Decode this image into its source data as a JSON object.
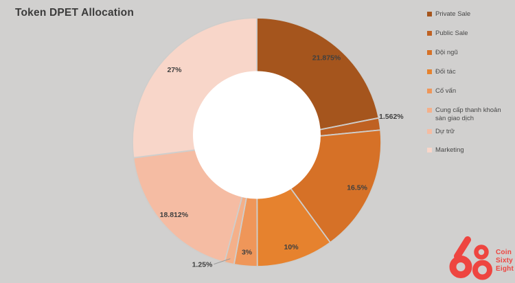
{
  "title": "Token DPET Allocation",
  "colors": {
    "background": "#d1d0cf",
    "title": "#3b3b3b",
    "label": "#404040",
    "legend_text": "#484848",
    "slice_border": "#cfcecc",
    "leader_line": "#9a9a9a",
    "hole": "#ffffff",
    "logo_red": "#ee4540"
  },
  "chart_data": {
    "type": "pie",
    "donut": true,
    "title": "Token DPET Allocation",
    "start_angle_deg": 0,
    "direction": "clockwise",
    "legend_position": "right",
    "slices": [
      {
        "label": "Private Sale",
        "value": 21.875,
        "display": "21.875%",
        "color": "#a5551d",
        "label_placement": "inside"
      },
      {
        "label": "Public Sale",
        "value": 1.562,
        "display": "1.562%",
        "color": "#bf6122",
        "label_placement": "outside"
      },
      {
        "label": "Đội ngũ",
        "value": 16.5,
        "display": "16.5%",
        "color": "#d67127",
        "label_placement": "inside"
      },
      {
        "label": "Đối tác",
        "value": 10,
        "display": "10%",
        "color": "#e6822e",
        "label_placement": "inside"
      },
      {
        "label": "Cố vấn",
        "value": 3,
        "display": "3%",
        "color": "#ef9659",
        "label_placement": "inside"
      },
      {
        "label": "Cung cấp thanh khoản sàn giao dịch",
        "value": 1.25,
        "display": "1.25%",
        "color": "#f4b08a",
        "label_placement": "outside"
      },
      {
        "label": "Dự trữ",
        "value": 18.812,
        "display": "18.812%",
        "color": "#f5bca3",
        "label_placement": "inside"
      },
      {
        "label": "Marketing",
        "value": 27,
        "display": "27%",
        "color": "#f8d6c9",
        "label_placement": "inside"
      }
    ]
  },
  "logo": {
    "numeral": "68",
    "lines": [
      "Coin",
      "Sixty",
      "Eight"
    ]
  }
}
